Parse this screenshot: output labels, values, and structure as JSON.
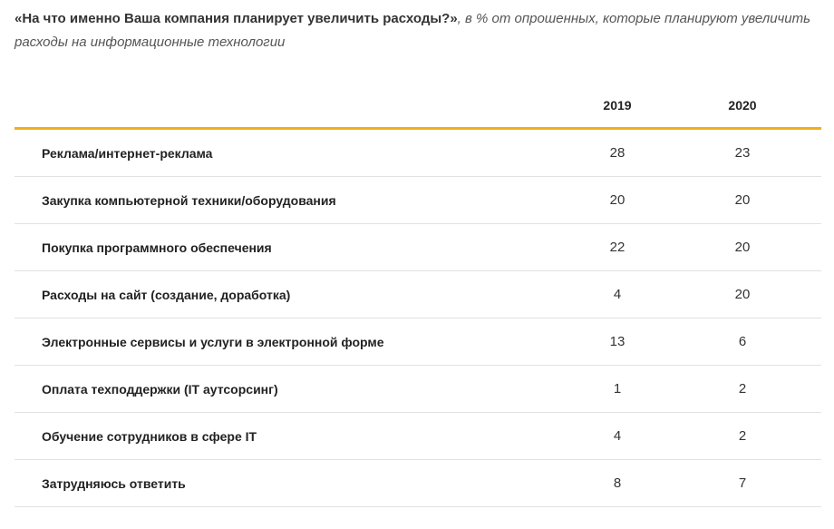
{
  "caption": {
    "question": "«На что именно Ваша компания планирует увеличить расходы?»",
    "subtitle": ", в % от опрошенных, которые планируют увеличить расходы на информационные технологии"
  },
  "colors": {
    "header_rule": "#F0AF1A",
    "row_divider": "#E2E2E2"
  },
  "chart_data": {
    "type": "table",
    "columns": [
      "",
      "2019",
      "2020"
    ],
    "rows": [
      {
        "label": "Реклама/интернет-реклама",
        "values": [
          "28",
          "23"
        ]
      },
      {
        "label": "Закупка компьютерной техники/оборудования",
        "values": [
          "20",
          "20"
        ]
      },
      {
        "label": "Покупка программного обеспечения",
        "values": [
          "22",
          "20"
        ]
      },
      {
        "label": "Расходы на сайт (создание, доработка)",
        "values": [
          "4",
          "20"
        ]
      },
      {
        "label": "Электронные сервисы и услуги в электронной форме",
        "values": [
          "13",
          "6"
        ]
      },
      {
        "label": "Оплата техподдержки (IT аутсорсинг)",
        "values": [
          "1",
          "2"
        ]
      },
      {
        "label": "Обучение сотрудников в сфере IT",
        "values": [
          "4",
          "2"
        ]
      },
      {
        "label": "Затрудняюсь ответить",
        "values": [
          "8",
          "7"
        ]
      }
    ]
  }
}
